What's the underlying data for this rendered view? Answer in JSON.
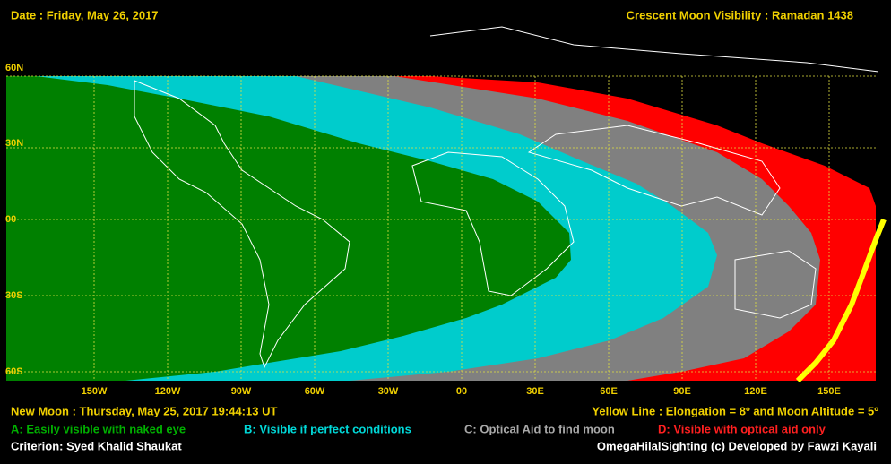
{
  "header": {
    "date": "Date : Friday, May 26, 2017",
    "title": "Crescent Moon Visibility : Ramadan  1438"
  },
  "map": {
    "lat_labels": [
      "60N",
      "30N",
      "00",
      "30S",
      "60S"
    ],
    "lon_labels": [
      "150W",
      "120W",
      "90W",
      "60W",
      "30W",
      "00",
      "30E",
      "60E",
      "90E",
      "120E",
      "150E"
    ]
  },
  "footer": {
    "new_moon": "New Moon : Thursday, May 25, 2017  19:44:13  UT",
    "yellow_line": "Yellow Line : Elongation = 8º  and Moon Altitude = 5º",
    "legend": [
      "A: Easily visible with naked eye",
      "B: Visible if perfect conditions",
      "C: Optical Aid to find moon",
      "D: Visible with optical aid only"
    ],
    "criterion": "Criterion: Syed Khalid Shaukat",
    "credit": "OmegaHilalSighting  (c)  Developed by Fawzi Kayali"
  }
}
